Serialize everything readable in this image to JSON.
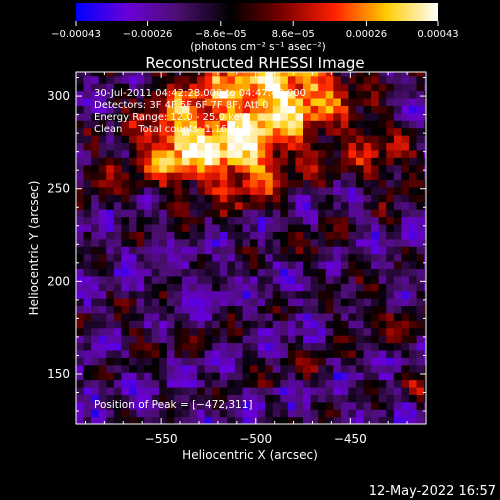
{
  "chart_data": {
    "type": "heatmap",
    "title": "Reconstructed RHESSI Image",
    "xlabel": "Heliocentric X (arcsec)",
    "ylabel": "Heliocentric Y (arcsec)",
    "xlim": [
      -595,
      -410
    ],
    "ylim": [
      123,
      313
    ],
    "xticks": [
      -550,
      -500,
      -450
    ],
    "xtick_labels": [
      "−550",
      "−500",
      "−450"
    ],
    "yticks": [
      150,
      200,
      250,
      300
    ],
    "ytick_labels": [
      "150",
      "200",
      "250",
      "300"
    ],
    "colorbar": {
      "range": [
        -0.00043,
        0.00043
      ],
      "ticks": [
        -0.00043,
        -0.00026,
        -8.6e-05,
        8.6e-05,
        0.00026,
        0.00043
      ],
      "tick_labels": [
        "−0.00043",
        "−0.00026",
        "−8.6e−05",
        "8.6e−05",
        "0.00026",
        "0.00043"
      ],
      "units_label": "(photons cm⁻² s⁻¹ asec⁻²)",
      "colors": [
        "#0000ff",
        "#6a00d8",
        "#4a0f6e",
        "#000000",
        "#7a0000",
        "#ff2000",
        "#ffcc00",
        "#ffffff"
      ]
    },
    "annotations": [
      "30-Jul-2011 04:42:28.000 to 04:47:48.000",
      "Detectors: 3F 4F 5F 6F 7F 8F, Att 0",
      "Energy Range: 12.0 - 25.0 keV",
      "Clean     Total counts: 1.16e+04"
    ],
    "peak_label": "Position of Peak = [−472,311]",
    "peak": {
      "x": -472,
      "y": 311
    },
    "bright_sources": [
      {
        "x": -480,
        "y": 305,
        "value": 0.00043,
        "r": 22
      },
      {
        "x": -520,
        "y": 285,
        "value": 0.00036,
        "r": 28
      },
      {
        "x": -545,
        "y": 270,
        "value": 0.00028,
        "r": 16
      },
      {
        "x": -505,
        "y": 262,
        "value": 0.00022,
        "r": 14
      },
      {
        "x": -440,
        "y": 270,
        "value": 0.00016,
        "r": 14
      },
      {
        "x": -585,
        "y": 255,
        "value": 0.00018,
        "r": 10
      },
      {
        "x": -425,
        "y": 255,
        "value": 0.00012,
        "r": 12
      },
      {
        "x": -468,
        "y": 215,
        "value": 0.00012,
        "r": 10
      },
      {
        "x": -448,
        "y": 180,
        "value": 0.00012,
        "r": 12
      },
      {
        "x": -420,
        "y": 175,
        "value": 0.00015,
        "r": 10
      },
      {
        "x": -565,
        "y": 172,
        "value": 0.00012,
        "r": 10
      },
      {
        "x": -535,
        "y": 165,
        "value": 9e-05,
        "r": 10
      },
      {
        "x": -500,
        "y": 148,
        "value": 6e-05,
        "r": 9
      },
      {
        "x": -470,
        "y": 150,
        "value": 0.00015,
        "r": 6
      },
      {
        "x": -415,
        "y": 140,
        "value": 0.00014,
        "r": 8
      }
    ]
  },
  "timestamp": "12-May-2022 16:57"
}
